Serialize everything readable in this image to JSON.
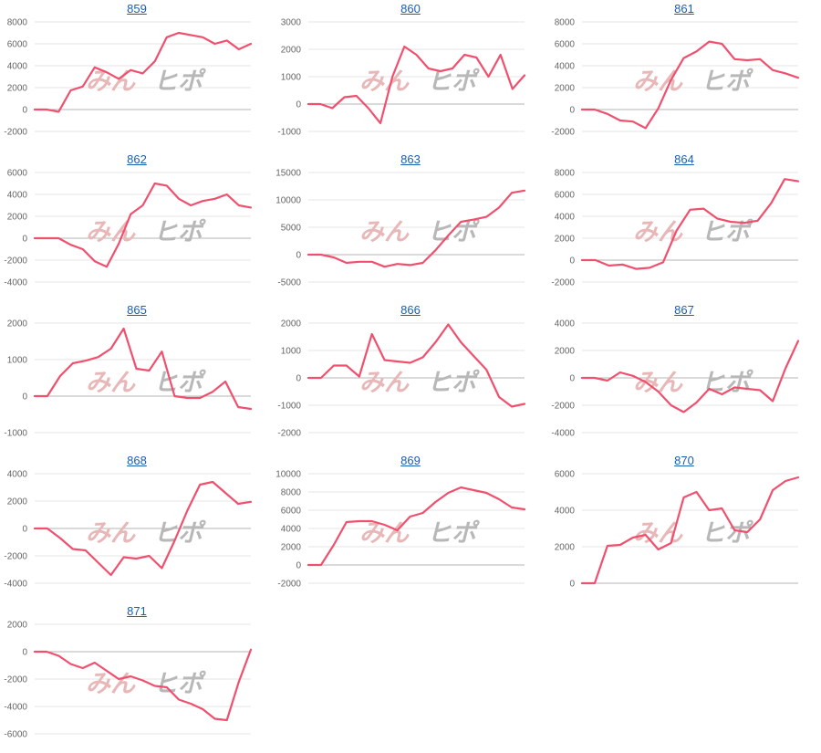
{
  "page": {
    "line_color": "#f0506e",
    "grid_color": "#e6e6e6",
    "title_color": "#1a5fb4"
  },
  "watermark": {
    "left": "みん",
    "right": "ヒポ"
  },
  "chart_data": [
    {
      "type": "line",
      "title": "859",
      "ylim": [
        -2000,
        8000
      ],
      "ticks": [
        "8000",
        "6000",
        "4000",
        "2000",
        "0",
        "-2000"
      ],
      "values": [
        0,
        0,
        -200,
        1750,
        2100,
        3850,
        3400,
        2800,
        3600,
        3300,
        4400,
        6600,
        7000,
        6800,
        6600,
        6000,
        6300,
        5500,
        6000
      ]
    },
    {
      "type": "line",
      "title": "860",
      "ylim": [
        -1000,
        3000
      ],
      "ticks": [
        "3000",
        "2000",
        "1000",
        "0",
        "-1000"
      ],
      "values": [
        0,
        0,
        -150,
        250,
        300,
        -150,
        -700,
        1000,
        2100,
        1800,
        1300,
        1200,
        1300,
        1800,
        1700,
        1000,
        1800,
        550,
        1050
      ]
    },
    {
      "type": "line",
      "title": "861",
      "ylim": [
        -2000,
        8000
      ],
      "ticks": [
        "8000",
        "6000",
        "4000",
        "2000",
        "0",
        "-2000"
      ],
      "values": [
        0,
        0,
        -400,
        -1000,
        -1100,
        -1700,
        100,
        2700,
        4700,
        5300,
        6200,
        6000,
        4600,
        4500,
        4600,
        3600,
        3300,
        2900
      ]
    },
    {
      "type": "line",
      "title": "862",
      "ylim": [
        -4000,
        6000
      ],
      "ticks": [
        "6000",
        "4000",
        "2000",
        "0",
        "-2000",
        "-4000"
      ],
      "values": [
        0,
        0,
        0,
        -600,
        -1000,
        -2100,
        -2600,
        -500,
        2200,
        3000,
        5000,
        4800,
        3600,
        3000,
        3400,
        3600,
        4000,
        3000,
        2800
      ]
    },
    {
      "type": "line",
      "title": "863",
      "ylim": [
        -5000,
        15000
      ],
      "ticks": [
        "15000",
        "10000",
        "5000",
        "0",
        "-5000"
      ],
      "values": [
        0,
        0,
        -500,
        -1500,
        -1300,
        -1300,
        -2200,
        -1700,
        -1900,
        -1500,
        800,
        3500,
        6000,
        6400,
        6900,
        8600,
        11300,
        11700
      ]
    },
    {
      "type": "line",
      "title": "864",
      "ylim": [
        -2000,
        8000
      ],
      "ticks": [
        "8000",
        "6000",
        "4000",
        "2000",
        "0",
        "-2000"
      ],
      "values": [
        0,
        0,
        -500,
        -400,
        -800,
        -700,
        -200,
        2700,
        4600,
        4700,
        3800,
        3500,
        3400,
        3600,
        5200,
        7400,
        7200
      ]
    },
    {
      "type": "line",
      "title": "865",
      "ylim": [
        -1000,
        2000
      ],
      "ticks": [
        "2000",
        "1000",
        "0",
        "-1000"
      ],
      "values": [
        0,
        0,
        550,
        900,
        970,
        1070,
        1300,
        1850,
        750,
        700,
        1220,
        0,
        -50,
        -50,
        120,
        400,
        -300,
        -350
      ]
    },
    {
      "type": "line",
      "title": "866",
      "ylim": [
        -2000,
        2000
      ],
      "ticks": [
        "2000",
        "1000",
        "0",
        "-1000",
        "-2000"
      ],
      "values": [
        0,
        0,
        450,
        450,
        50,
        1600,
        650,
        600,
        550,
        750,
        1300,
        1950,
        1300,
        800,
        300,
        -700,
        -1050,
        -950
      ]
    },
    {
      "type": "line",
      "title": "867",
      "ylim": [
        -4000,
        4000
      ],
      "ticks": [
        "4000",
        "2000",
        "0",
        "-2000",
        "-4000"
      ],
      "values": [
        0,
        0,
        -200,
        400,
        150,
        -300,
        -1000,
        -2000,
        -2500,
        -1800,
        -800,
        -1200,
        -700,
        -800,
        -900,
        -1700,
        700,
        2700
      ]
    },
    {
      "type": "line",
      "title": "868",
      "ylim": [
        -4000,
        4000
      ],
      "ticks": [
        "4000",
        "2000",
        "0",
        "-2000",
        "-4000"
      ],
      "values": [
        0,
        0,
        -700,
        -1500,
        -1600,
        -2500,
        -3400,
        -2100,
        -2200,
        -2000,
        -2900,
        -900,
        1300,
        3200,
        3400,
        2600,
        1800,
        1950
      ]
    },
    {
      "type": "line",
      "title": "869",
      "ylim": [
        -2000,
        10000
      ],
      "ticks": [
        "10000",
        "8000",
        "6000",
        "4000",
        "2000",
        "0",
        "-2000"
      ],
      "values": [
        0,
        0,
        2200,
        4700,
        4800,
        4800,
        4400,
        3800,
        5300,
        5700,
        6900,
        7900,
        8500,
        8200,
        7900,
        7200,
        6300,
        6100
      ]
    },
    {
      "type": "line",
      "title": "870",
      "ylim": [
        0,
        6000
      ],
      "ticks": [
        "6000",
        "4000",
        "2000",
        "0"
      ],
      "values": [
        0,
        0,
        2050,
        2100,
        2500,
        2650,
        1850,
        2200,
        4700,
        5000,
        4000,
        4100,
        2900,
        2800,
        3500,
        5100,
        5600,
        5800
      ]
    },
    {
      "type": "line",
      "title": "871",
      "ylim": [
        -6000,
        2000
      ],
      "ticks": [
        "2000",
        "0",
        "-2000",
        "-4000",
        "-6000"
      ],
      "values": [
        0,
        0,
        -300,
        -900,
        -1200,
        -800,
        -1400,
        -2000,
        -1800,
        -2100,
        -2500,
        -2600,
        -3500,
        -3800,
        -4200,
        -4900,
        -5000,
        -2200,
        150
      ]
    }
  ]
}
